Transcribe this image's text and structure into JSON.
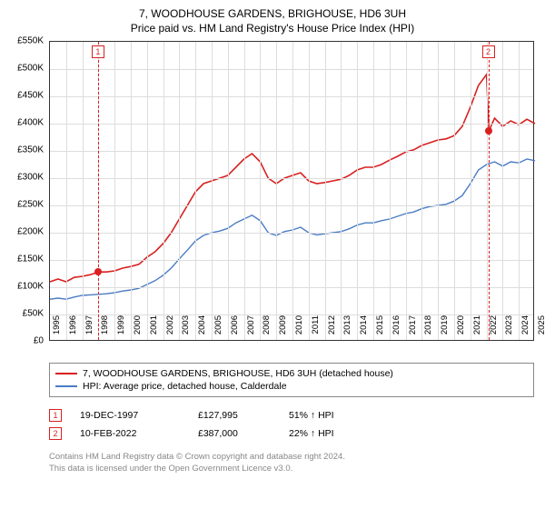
{
  "title_line1": "7, WOODHOUSE GARDENS, BRIGHOUSE, HD6 3UH",
  "title_line2": "Price paid vs. HM Land Registry's House Price Index (HPI)",
  "chart": {
    "type": "line",
    "background_color": "#ffffff",
    "grid_color": "#dddddd",
    "border_color": "#333333",
    "axis_font_size": 10,
    "x_years": [
      "1995",
      "1996",
      "1997",
      "1998",
      "1999",
      "2000",
      "2001",
      "2002",
      "2003",
      "2004",
      "2005",
      "2006",
      "2007",
      "2008",
      "2009",
      "2010",
      "2011",
      "2012",
      "2013",
      "2014",
      "2015",
      "2016",
      "2017",
      "2018",
      "2019",
      "2020",
      "2021",
      "2022",
      "2023",
      "2024",
      "2025"
    ],
    "xlim": [
      1995,
      2025
    ],
    "y_ticks": [
      0,
      50,
      100,
      150,
      200,
      250,
      300,
      350,
      400,
      450,
      500,
      550
    ],
    "y_tick_labels": [
      "£0",
      "£50K",
      "£100K",
      "£150K",
      "£200K",
      "£250K",
      "£300K",
      "£350K",
      "£400K",
      "£450K",
      "£500K",
      "£550K"
    ],
    "ylim": [
      0,
      550
    ],
    "series_red": {
      "label": "7, WOODHOUSE GARDENS, BRIGHOUSE, HD6 3UH (detached house)",
      "color": "#d92020",
      "line_width": 1.6,
      "data": [
        [
          1995,
          110
        ],
        [
          1995.5,
          115
        ],
        [
          1996,
          110
        ],
        [
          1996.5,
          118
        ],
        [
          1997,
          120
        ],
        [
          1997.5,
          123
        ],
        [
          1998,
          128
        ],
        [
          1998.5,
          128
        ],
        [
          1999,
          130
        ],
        [
          1999.5,
          135
        ],
        [
          2000,
          138
        ],
        [
          2000.5,
          142
        ],
        [
          2001,
          155
        ],
        [
          2001.5,
          165
        ],
        [
          2002,
          180
        ],
        [
          2002.5,
          200
        ],
        [
          2003,
          225
        ],
        [
          2003.5,
          250
        ],
        [
          2004,
          275
        ],
        [
          2004.5,
          290
        ],
        [
          2005,
          295
        ],
        [
          2005.5,
          300
        ],
        [
          2006,
          305
        ],
        [
          2006.5,
          320
        ],
        [
          2007,
          335
        ],
        [
          2007.5,
          345
        ],
        [
          2008,
          330
        ],
        [
          2008.5,
          300
        ],
        [
          2009,
          290
        ],
        [
          2009.5,
          300
        ],
        [
          2010,
          305
        ],
        [
          2010.5,
          310
        ],
        [
          2011,
          295
        ],
        [
          2011.5,
          290
        ],
        [
          2012,
          292
        ],
        [
          2012.5,
          295
        ],
        [
          2013,
          298
        ],
        [
          2013.5,
          305
        ],
        [
          2014,
          315
        ],
        [
          2014.5,
          320
        ],
        [
          2015,
          320
        ],
        [
          2015.5,
          325
        ],
        [
          2016,
          333
        ],
        [
          2016.5,
          340
        ],
        [
          2017,
          348
        ],
        [
          2017.5,
          352
        ],
        [
          2018,
          360
        ],
        [
          2018.5,
          365
        ],
        [
          2019,
          370
        ],
        [
          2019.5,
          372
        ],
        [
          2020,
          378
        ],
        [
          2020.5,
          395
        ],
        [
          2021,
          430
        ],
        [
          2021.5,
          470
        ],
        [
          2022,
          490
        ],
        [
          2022.15,
          387
        ],
        [
          2022.5,
          410
        ],
        [
          2023,
          395
        ],
        [
          2023.5,
          405
        ],
        [
          2024,
          398
        ],
        [
          2024.5,
          408
        ],
        [
          2025,
          400
        ]
      ]
    },
    "series_blue": {
      "label": "HPI: Average price, detached house, Calderdale",
      "color": "#4a7cc4",
      "line_width": 1.4,
      "data": [
        [
          1995,
          78
        ],
        [
          1995.5,
          80
        ],
        [
          1996,
          78
        ],
        [
          1996.5,
          82
        ],
        [
          1997,
          85
        ],
        [
          1997.5,
          86
        ],
        [
          1998,
          87
        ],
        [
          1998.5,
          88
        ],
        [
          1999,
          90
        ],
        [
          1999.5,
          93
        ],
        [
          2000,
          95
        ],
        [
          2000.5,
          98
        ],
        [
          2001,
          105
        ],
        [
          2001.5,
          112
        ],
        [
          2002,
          122
        ],
        [
          2002.5,
          135
        ],
        [
          2003,
          152
        ],
        [
          2003.5,
          168
        ],
        [
          2004,
          185
        ],
        [
          2004.5,
          195
        ],
        [
          2005,
          200
        ],
        [
          2005.5,
          203
        ],
        [
          2006,
          208
        ],
        [
          2006.5,
          218
        ],
        [
          2007,
          225
        ],
        [
          2007.5,
          232
        ],
        [
          2008,
          222
        ],
        [
          2008.5,
          200
        ],
        [
          2009,
          195
        ],
        [
          2009.5,
          202
        ],
        [
          2010,
          205
        ],
        [
          2010.5,
          210
        ],
        [
          2011,
          200
        ],
        [
          2011.5,
          196
        ],
        [
          2012,
          198
        ],
        [
          2012.5,
          200
        ],
        [
          2013,
          202
        ],
        [
          2013.5,
          207
        ],
        [
          2014,
          214
        ],
        [
          2014.5,
          218
        ],
        [
          2015,
          218
        ],
        [
          2015.5,
          222
        ],
        [
          2016,
          225
        ],
        [
          2016.5,
          230
        ],
        [
          2017,
          235
        ],
        [
          2017.5,
          238
        ],
        [
          2018,
          244
        ],
        [
          2018.5,
          248
        ],
        [
          2019,
          250
        ],
        [
          2019.5,
          252
        ],
        [
          2020,
          258
        ],
        [
          2020.5,
          268
        ],
        [
          2021,
          290
        ],
        [
          2021.5,
          315
        ],
        [
          2022,
          325
        ],
        [
          2022.5,
          330
        ],
        [
          2023,
          322
        ],
        [
          2023.5,
          330
        ],
        [
          2024,
          328
        ],
        [
          2024.5,
          335
        ],
        [
          2025,
          332
        ]
      ]
    },
    "sale_markers": [
      {
        "n": "1",
        "year": 1997.97,
        "color": "#d92020",
        "point_y": 128
      },
      {
        "n": "2",
        "year": 2022.11,
        "color": "#d92020",
        "point_y": 387
      }
    ]
  },
  "legend": {
    "border_color": "#888888",
    "font_size": 10.5
  },
  "sales": [
    {
      "n": "1",
      "date": "19-DEC-1997",
      "price": "£127,995",
      "pct": "51% ↑ HPI",
      "color": "#d92020"
    },
    {
      "n": "2",
      "date": "10-FEB-2022",
      "price": "£387,000",
      "pct": "22% ↑ HPI",
      "color": "#d92020"
    }
  ],
  "footer_line1": "Contains HM Land Registry data © Crown copyright and database right 2024.",
  "footer_line2": "This data is licensed under the Open Government Licence v3.0.",
  "footer_color": "#888888"
}
